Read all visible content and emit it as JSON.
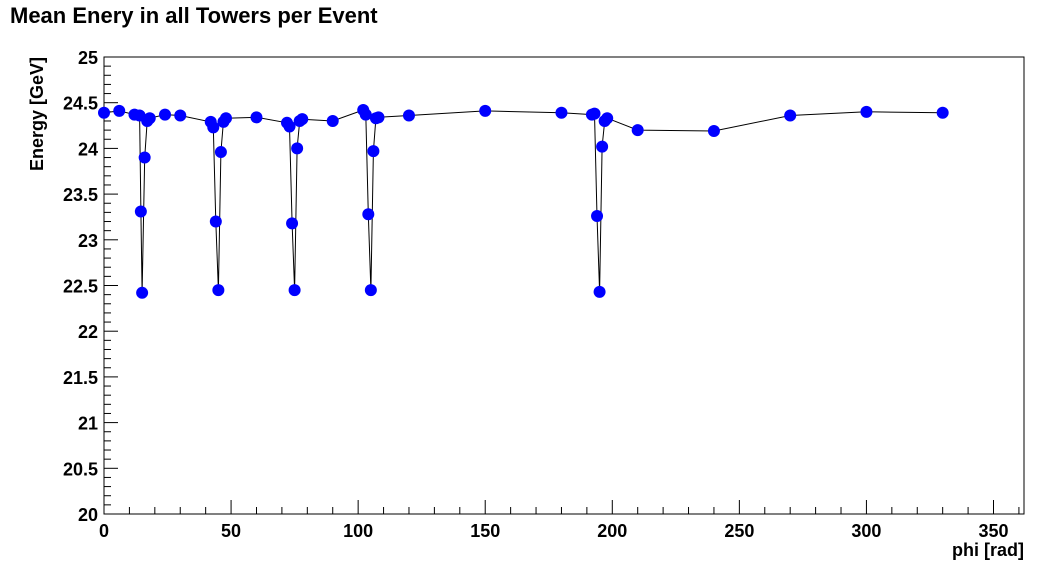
{
  "chart_data": {
    "type": "line",
    "title": "Mean Enery in all Towers per Event",
    "xlabel": "phi [rad]",
    "ylabel": "Energy [GeV]",
    "xlim": [
      0,
      362
    ],
    "ylim": [
      20,
      25
    ],
    "x_ticks": [
      0,
      50,
      100,
      150,
      200,
      250,
      300,
      350
    ],
    "y_ticks": [
      20,
      20.5,
      21,
      21.5,
      22,
      22.5,
      23,
      23.5,
      24,
      24.5,
      25
    ],
    "grid": false,
    "series": [
      {
        "marker_color": "#0000ff",
        "line_color": "#000000",
        "points": [
          [
            0,
            24.39
          ],
          [
            6,
            24.41
          ],
          [
            12,
            24.37
          ],
          [
            14,
            24.36
          ],
          [
            14.5,
            23.31
          ],
          [
            15,
            22.42
          ],
          [
            16,
            23.9
          ],
          [
            17,
            24.3
          ],
          [
            18,
            24.33
          ],
          [
            24,
            24.37
          ],
          [
            30,
            24.36
          ],
          [
            42,
            24.29
          ],
          [
            43,
            24.23
          ],
          [
            44,
            23.2
          ],
          [
            45,
            22.45
          ],
          [
            46,
            23.96
          ],
          [
            47,
            24.29
          ],
          [
            48,
            24.33
          ],
          [
            60,
            24.34
          ],
          [
            72,
            24.28
          ],
          [
            73,
            24.24
          ],
          [
            74,
            23.18
          ],
          [
            75,
            22.45
          ],
          [
            76,
            24.0
          ],
          [
            77,
            24.3
          ],
          [
            78,
            24.32
          ],
          [
            90,
            24.3
          ],
          [
            102,
            24.42
          ],
          [
            103,
            24.37
          ],
          [
            104,
            23.28
          ],
          [
            105,
            22.45
          ],
          [
            106,
            23.97
          ],
          [
            107,
            24.33
          ],
          [
            108,
            24.34
          ],
          [
            120,
            24.36
          ],
          [
            150,
            24.41
          ],
          [
            180,
            24.39
          ],
          [
            192,
            24.37
          ],
          [
            193,
            24.38
          ],
          [
            194,
            23.26
          ],
          [
            195,
            22.43
          ],
          [
            196,
            24.02
          ],
          [
            197,
            24.3
          ],
          [
            198,
            24.33
          ],
          [
            210,
            24.2
          ],
          [
            240,
            24.19
          ],
          [
            270,
            24.36
          ],
          [
            300,
            24.4
          ],
          [
            330,
            24.39
          ]
        ]
      }
    ]
  }
}
